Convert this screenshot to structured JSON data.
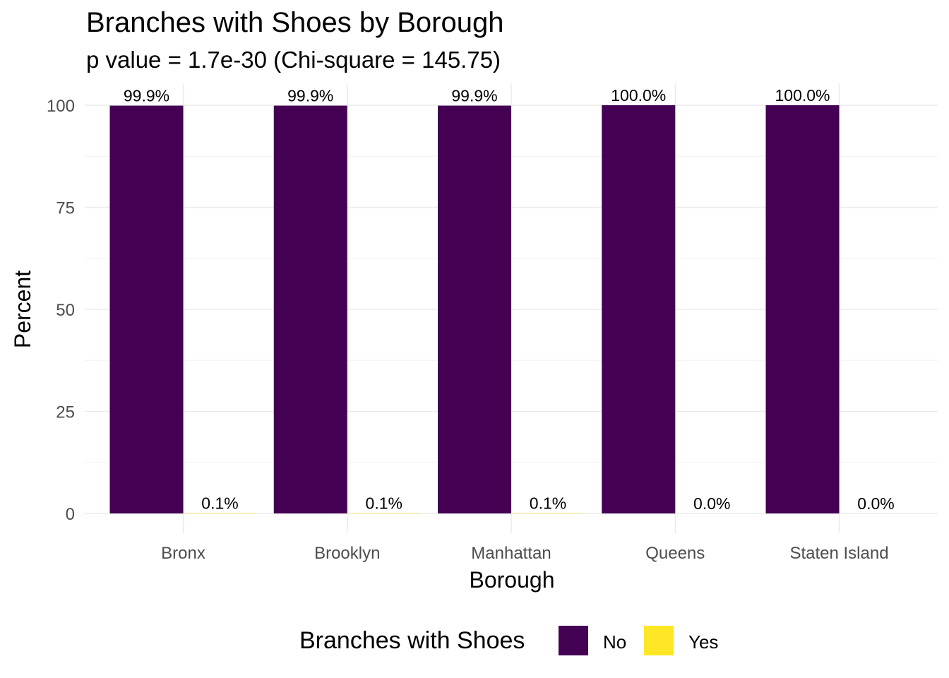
{
  "chart_data": {
    "type": "bar",
    "title": "Branches with Shoes by Borough",
    "subtitle": "p value = 1.7e-30 (Chi-square = 145.75)",
    "xlabel": "Borough",
    "ylabel": "Percent",
    "categories": [
      "Bronx",
      "Brooklyn",
      "Manhattan",
      "Queens",
      "Staten Island"
    ],
    "series": [
      {
        "name": "No",
        "color": "#440154",
        "values": [
          99.9,
          99.9,
          99.9,
          100.0,
          100.0
        ],
        "labels": [
          "99.9%",
          "99.9%",
          "99.9%",
          "100.0%",
          "100.0%"
        ]
      },
      {
        "name": "Yes",
        "color": "#FDE725",
        "values": [
          0.1,
          0.1,
          0.1,
          0.0,
          0.0
        ],
        "labels": [
          "0.1%",
          "0.1%",
          "0.1%",
          "0.0%",
          "0.0%"
        ]
      }
    ],
    "ylim": [
      0,
      100
    ],
    "yticks": [
      0,
      25,
      50,
      75,
      100
    ],
    "grid": true,
    "legend": {
      "title": "Branches with Shoes",
      "position": "bottom",
      "entries": [
        "No",
        "Yes"
      ]
    }
  }
}
